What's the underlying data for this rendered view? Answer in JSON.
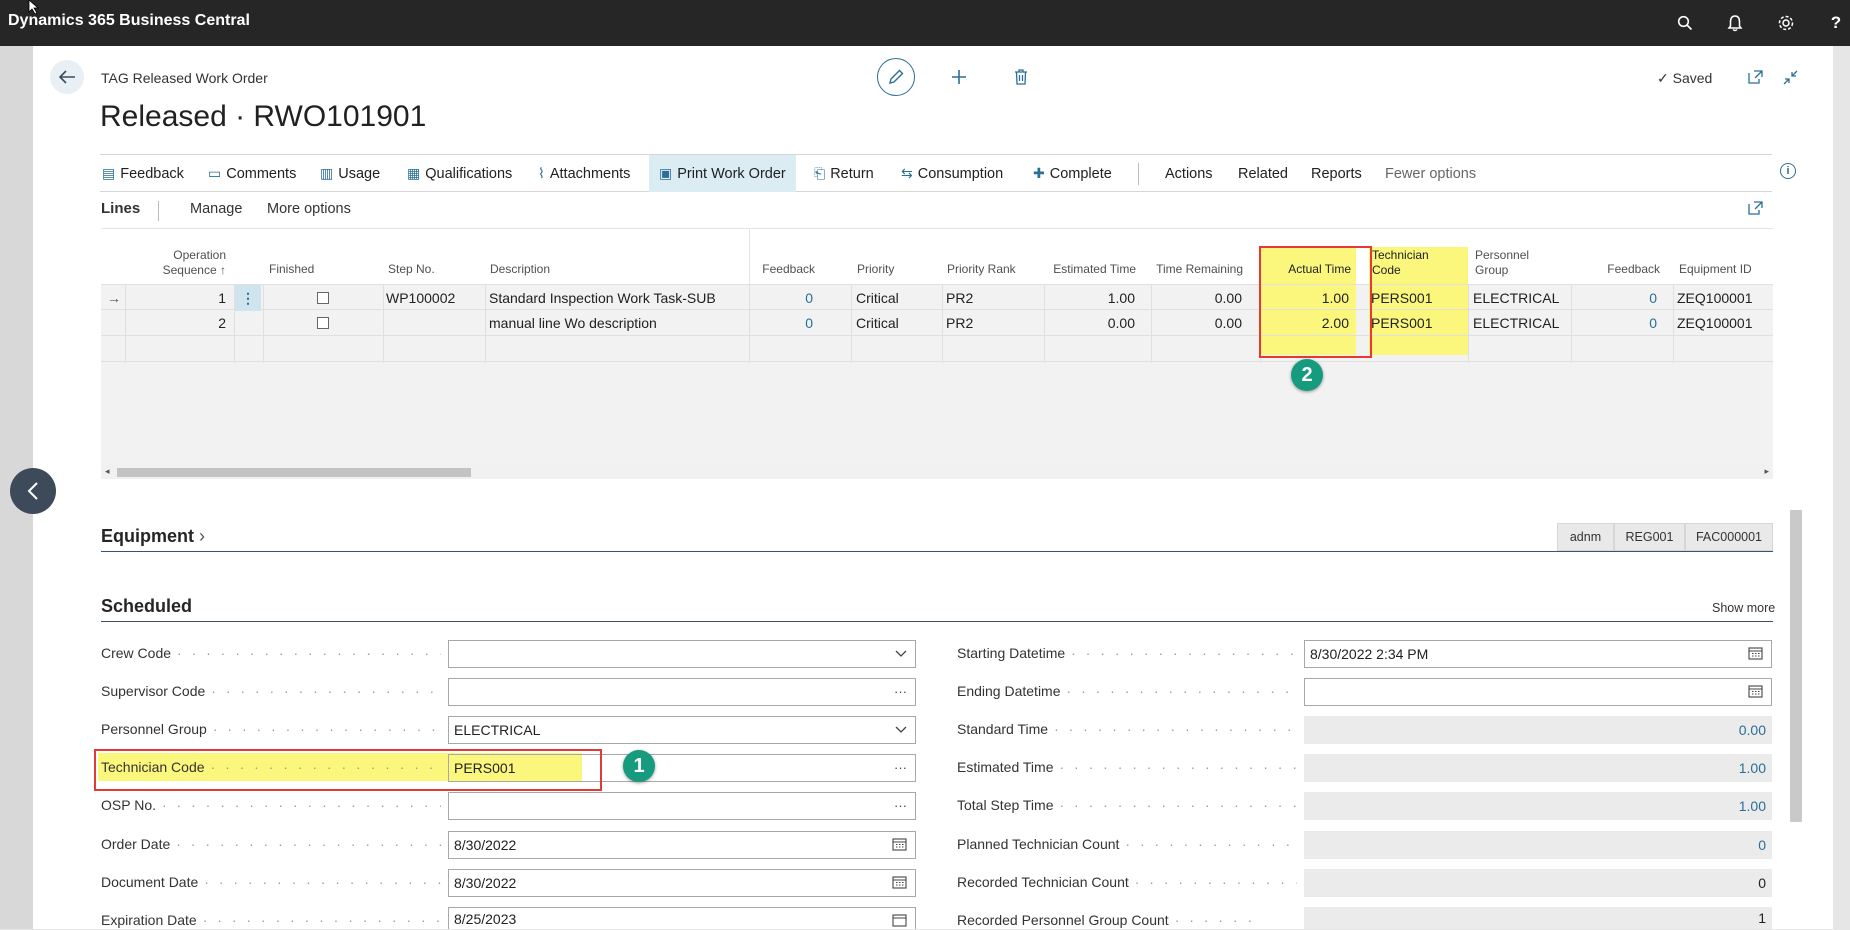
{
  "app": {
    "title": "Dynamics 365 Business Central"
  },
  "page": {
    "breadcrumb": "TAG Released Work Order",
    "title": "Released · RWO101901",
    "status": "Saved"
  },
  "actions": [
    "Feedback",
    "Comments",
    "Usage",
    "Qualifications",
    "Attachments",
    "Print Work Order",
    "Return",
    "Consumption",
    "Complete",
    "Actions",
    "Related",
    "Reports",
    "Fewer options"
  ],
  "lines": {
    "title": "Lines",
    "manage": "Manage",
    "more": "More options",
    "headers": {
      "op_seq_1": "Operation",
      "op_seq_2": "Sequence ↑",
      "finished": "Finished",
      "step_no": "Step No.",
      "description": "Description",
      "feedback": "Feedback",
      "priority": "Priority",
      "priority_rank": "Priority Rank",
      "estimated_time": "Estimated Time",
      "time_remaining": "Time Remaining",
      "actual_time": "Actual Time",
      "tech_code_1": "Technician",
      "tech_code_2": "Code",
      "personnel_group_1": "Personnel",
      "personnel_group_2": "Group",
      "feedback2": "Feedback",
      "equipment_id": "Equipment ID"
    },
    "rows": [
      {
        "seq": "1",
        "step": "WP100002",
        "description": "Standard Inspection Work Task-SUB",
        "feedback": "0",
        "priority": "Critical",
        "rank": "PR2",
        "est": "1.00",
        "remaining": "0.00",
        "actual": "1.00",
        "tech": "PERS001",
        "group": "ELECTRICAL",
        "feedback2": "0",
        "equipment": "ZEQ100001"
      },
      {
        "seq": "2",
        "step": "",
        "description": "manual line Wo description",
        "feedback": "0",
        "priority": "Critical",
        "rank": "PR2",
        "est": "0.00",
        "remaining": "0.00",
        "actual": "2.00",
        "tech": "PERS001",
        "group": "ELECTRICAL",
        "feedback2": "0",
        "equipment": "ZEQ100001"
      }
    ]
  },
  "equipment": {
    "title": "Equipment",
    "tags": [
      "adnm",
      "REG001",
      "FAC000001"
    ]
  },
  "scheduled": {
    "title": "Scheduled",
    "show_more": "Show more",
    "left": [
      {
        "label": "Crew Code",
        "value": ""
      },
      {
        "label": "Supervisor Code",
        "value": ""
      },
      {
        "label": "Personnel Group",
        "value": "ELECTRICAL"
      },
      {
        "label": "Technician Code",
        "value": "PERS001"
      },
      {
        "label": "OSP No.",
        "value": ""
      },
      {
        "label": "Order Date",
        "value": "8/30/2022"
      },
      {
        "label": "Document Date",
        "value": "8/30/2022"
      },
      {
        "label": "Expiration Date",
        "value": "8/25/2023"
      }
    ],
    "right": [
      {
        "label": "Starting Datetime",
        "value": "8/30/2022 2:34 PM"
      },
      {
        "label": "Ending Datetime",
        "value": ""
      },
      {
        "label": "Standard Time",
        "value": "0.00"
      },
      {
        "label": "Estimated Time",
        "value": "1.00"
      },
      {
        "label": "Total Step Time",
        "value": "1.00"
      },
      {
        "label": "Planned Technician Count",
        "value": "0"
      },
      {
        "label": "Recorded Technician Count",
        "value": "0"
      },
      {
        "label": "Recorded Personnel Group Count",
        "value": "1"
      }
    ]
  },
  "callouts": [
    "1",
    "2"
  ],
  "icons": [
    "search-icon",
    "bell-icon",
    "gear-icon",
    "help-icon",
    "back-arrow-icon",
    "pencil-icon",
    "plus-icon",
    "trash-icon",
    "open-new-icon",
    "collapse-icon",
    "dropdown-icon",
    "calendar-icon",
    "ellipsis-icon",
    "chevron-left-icon",
    "info-icon"
  ],
  "colors": {
    "accent": "#2a6f97",
    "highlight": "#fbf77c",
    "callout_border": "#e53935",
    "badge": "#179b7f",
    "topbar": "#262626"
  }
}
